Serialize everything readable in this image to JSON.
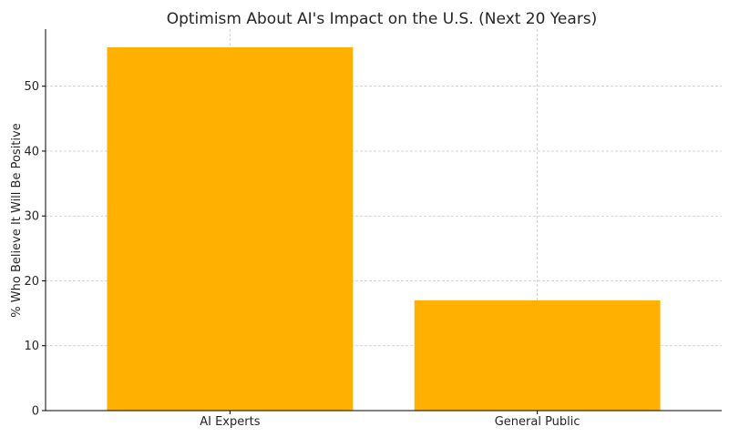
{
  "chart_data": {
    "type": "bar",
    "title": "Optimism About AI's Impact on the U.S. (Next 20 Years)",
    "xlabel": "",
    "ylabel": "% Who Believe It Will Be Positive",
    "categories": [
      "AI Experts",
      "General Public"
    ],
    "values": [
      56,
      17
    ],
    "ylim": [
      0,
      58.8
    ],
    "yticks": [
      0,
      10,
      20,
      30,
      40,
      50
    ],
    "grid": true,
    "bar_color": "#FFB000"
  }
}
